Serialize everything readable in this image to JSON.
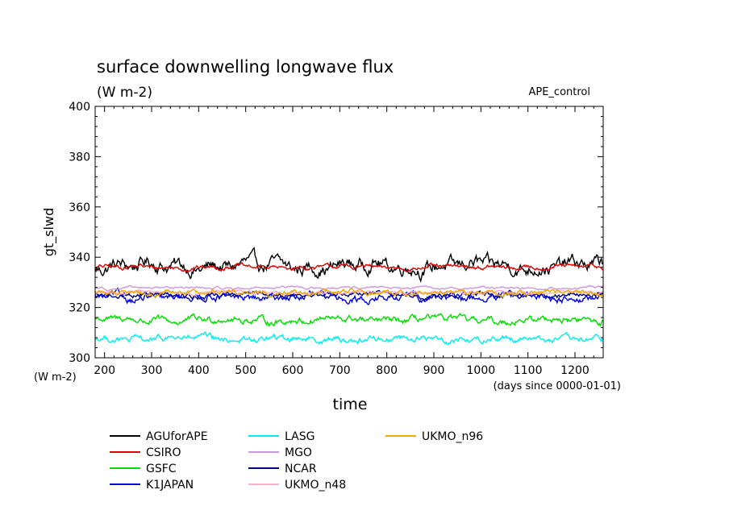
{
  "chart_data": {
    "type": "line",
    "title": "surface downwelling longwave flux",
    "units_label": "(W m-2)",
    "experiment": "APE_control",
    "xlabel": "time",
    "xunits": "(days since 0000-01-01)",
    "ylabel": "gt_slwd",
    "yunits": "(W m-2)",
    "xlim": [
      180,
      1260
    ],
    "ylim": [
      300,
      400
    ],
    "xticks": [
      200,
      300,
      400,
      500,
      600,
      700,
      800,
      900,
      1000,
      1100,
      1200
    ],
    "yticks": [
      300,
      320,
      340,
      360,
      380,
      400
    ],
    "grid": false,
    "legend_position": "bottom",
    "series": [
      {
        "name": "AGUforAPE",
        "color": "#000000",
        "mean": 336.5,
        "amp": 2.8
      },
      {
        "name": "CSIRO",
        "color": "#e00000",
        "mean": 336.0,
        "amp": 0.9
      },
      {
        "name": "GSFC",
        "color": "#00dd00",
        "mean": 315.0,
        "amp": 1.4
      },
      {
        "name": "K1JAPAN",
        "color": "#0000dd",
        "mean": 324.0,
        "amp": 1.6
      },
      {
        "name": "LASG",
        "color": "#00eeee",
        "mean": 307.5,
        "amp": 1.3
      },
      {
        "name": "MGO",
        "color": "#cc99dd",
        "mean": 327.8,
        "amp": 0.5
      },
      {
        "name": "NCAR",
        "color": "#000080",
        "mean": 325.0,
        "amp": 1.0
      },
      {
        "name": "UKMO_n48",
        "color": "#ffb0c8",
        "mean": 326.0,
        "amp": 0.6
      },
      {
        "name": "UKMO_n96",
        "color": "#f0a800",
        "mean": 325.8,
        "amp": 1.0
      }
    ]
  }
}
